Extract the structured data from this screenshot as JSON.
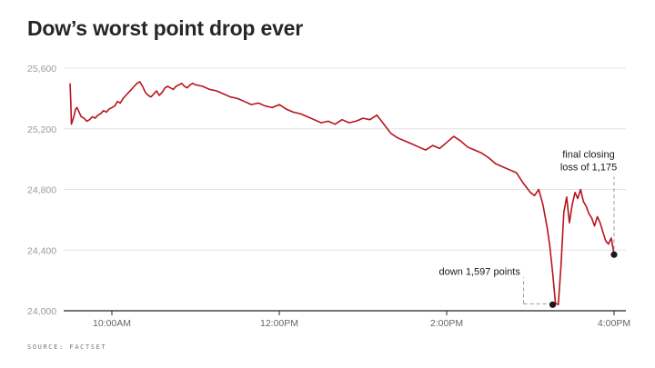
{
  "chart_data": {
    "type": "line",
    "title": "Dow’s worst point drop ever",
    "source": "SOURCE: FACTSET",
    "ylim": [
      24000,
      25600
    ],
    "y_ticks": [
      "25,600",
      "25,200",
      "24,800",
      "24,400",
      "24,000"
    ],
    "y_tick_values": [
      25600,
      25200,
      24800,
      24400,
      24000
    ],
    "x_ticks": [
      "10:00AM",
      "12:00PM",
      "2:00PM",
      "4:00PM"
    ],
    "x_tick_minutes": [
      30,
      150,
      270,
      390
    ],
    "x_range_minutes": [
      0,
      390
    ],
    "grid": true,
    "line_color": "#b8141c",
    "series": [
      {
        "x": [
          0,
          0.5,
          1,
          2,
          3,
          4,
          5,
          6,
          7,
          8,
          10,
          12,
          14,
          16,
          18,
          20,
          22,
          24,
          26,
          28,
          30,
          32,
          34,
          36,
          38,
          40,
          42,
          44,
          46,
          48,
          50,
          52,
          54,
          56,
          58,
          60,
          62,
          64,
          66,
          68,
          70,
          72,
          74,
          76,
          78,
          80,
          82,
          84,
          86,
          88,
          90,
          95,
          100,
          105,
          110,
          115,
          120,
          125,
          130,
          135,
          140,
          145,
          150,
          155,
          160,
          165,
          170,
          175,
          180,
          185,
          190,
          195,
          200,
          205,
          210,
          215,
          220,
          225,
          230,
          235,
          240,
          245,
          250,
          255,
          260,
          265,
          270,
          275,
          280,
          285,
          290,
          295,
          300,
          305,
          310,
          315,
          320,
          325,
          330,
          333,
          336,
          339,
          342,
          344,
          346,
          348,
          350,
          352,
          354,
          356,
          358,
          360,
          362,
          364,
          366,
          368,
          370,
          372,
          374,
          376,
          378,
          380,
          382,
          384,
          386,
          388,
          390
        ],
        "y": [
          25500,
          25380,
          25230,
          25260,
          25290,
          25330,
          25340,
          25320,
          25300,
          25280,
          25270,
          25250,
          25260,
          25280,
          25270,
          25290,
          25300,
          25320,
          25310,
          25330,
          25340,
          25350,
          25380,
          25370,
          25400,
          25420,
          25440,
          25460,
          25480,
          25500,
          25510,
          25480,
          25440,
          25420,
          25410,
          25430,
          25450,
          25420,
          25440,
          25470,
          25480,
          25470,
          25460,
          25480,
          25490,
          25500,
          25480,
          25470,
          25490,
          25500,
          25490,
          25480,
          25460,
          25450,
          25430,
          25410,
          25400,
          25380,
          25360,
          25370,
          25350,
          25340,
          25360,
          25330,
          25310,
          25300,
          25280,
          25260,
          25240,
          25250,
          25230,
          25260,
          25240,
          25250,
          25270,
          25260,
          25290,
          25230,
          25170,
          25140,
          25120,
          25100,
          25080,
          25060,
          25090,
          25070,
          25110,
          25150,
          25120,
          25080,
          25060,
          25040,
          25010,
          24970,
          24950,
          24930,
          24910,
          24840,
          24780,
          24760,
          24800,
          24700,
          24550,
          24420,
          24250,
          24050,
          24040,
          24300,
          24650,
          24750,
          24580,
          24700,
          24780,
          24740,
          24800,
          24720,
          24690,
          24640,
          24610,
          24560,
          24620,
          24580,
          24520,
          24460,
          24440,
          24480,
          24370
        ]
      }
    ],
    "annotations": [
      {
        "label": "down 1,597 points",
        "x": 346,
        "y": 24040
      },
      {
        "label_line1": "final closing",
        "label_line2": "loss of 1,175",
        "x": 390,
        "y": 24370
      }
    ]
  }
}
